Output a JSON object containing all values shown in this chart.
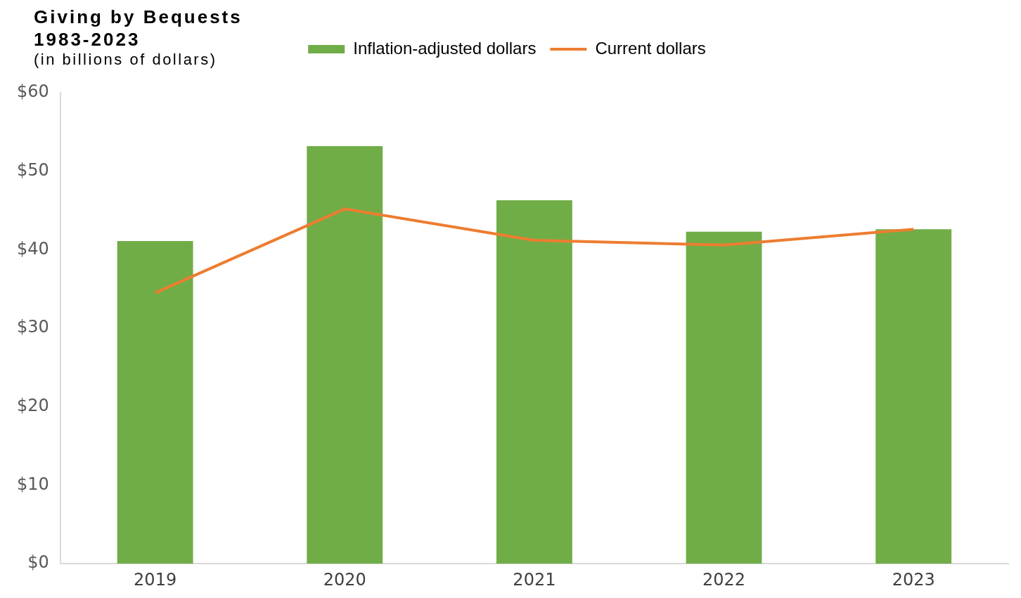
{
  "chart_data": {
    "type": "bar",
    "title": "Giving by Bequests\n1983-2023",
    "subtitle": "(in billions of dollars)",
    "categories": [
      "2019",
      "2020",
      "2021",
      "2022",
      "2023"
    ],
    "series": [
      {
        "name": "Inflation-adjusted dollars",
        "color": "#70ad47",
        "values": [
          41.1,
          53.2,
          46.3,
          42.3,
          42.6
        ]
      },
      {
        "name": "Current dollars",
        "type": "line",
        "color": "#ed7d31",
        "values": [
          34.5,
          45.2,
          41.2,
          40.6,
          42.6
        ]
      }
    ],
    "ylim": [
      0,
      60
    ],
    "yticks": [
      {
        "value": 0,
        "label": "$0"
      },
      {
        "value": 10,
        "label": "$10"
      },
      {
        "value": 20,
        "label": "$20"
      },
      {
        "value": 30,
        "label": "$30"
      },
      {
        "value": 40,
        "label": "$40"
      },
      {
        "value": 50,
        "label": "$50"
      },
      {
        "value": 60,
        "label": "$60"
      }
    ],
    "grid": false,
    "legend": "top",
    "marker": "none",
    "line_style": "solid"
  }
}
